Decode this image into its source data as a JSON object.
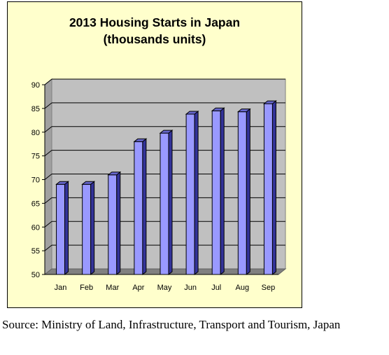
{
  "chart_data": {
    "type": "bar",
    "title_line1": "2013 Housing Starts in Japan",
    "title_line2": "(thousands units)",
    "xlabel": "",
    "ylabel": "",
    "categories": [
      "Jan",
      "Feb",
      "Mar",
      "Apr",
      "May",
      "Jun",
      "Jul",
      "Aug",
      "Sep"
    ],
    "values": [
      69,
      69,
      71,
      78,
      79.8,
      83.8,
      84.5,
      84.3,
      86
    ],
    "ylim": [
      50,
      90
    ],
    "y_ticks": [
      "50",
      "55",
      "60",
      "65",
      "70",
      "75",
      "80",
      "85",
      "90"
    ],
    "grid": true,
    "bar_color": "#9999ff",
    "plot_background": "#c0c0c0",
    "figure_background": "#ffffcc"
  },
  "source_note": "Source: Ministry of Land, Infrastructure, Transport and Tourism, Japan"
}
